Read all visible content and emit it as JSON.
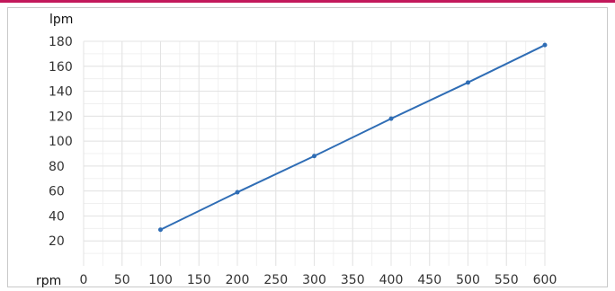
{
  "colors": {
    "accent_bar": "#c2185b",
    "line": "#2f6db5",
    "grid": "#e3e3e3",
    "frame": "#c9c9c9"
  },
  "chart_data": {
    "type": "line",
    "xlabel": "rpm",
    "ylabel": "lpm",
    "xlim": [
      0,
      600
    ],
    "ylim": [
      0,
      180
    ],
    "x_ticks": [
      0,
      50,
      100,
      150,
      200,
      250,
      300,
      350,
      400,
      450,
      500,
      550,
      600
    ],
    "y_ticks": [
      20,
      40,
      60,
      80,
      100,
      120,
      140,
      160,
      180
    ],
    "grid": true,
    "series": [
      {
        "x": [
          100,
          200,
          300,
          400,
          500,
          600
        ],
        "values": [
          29,
          59,
          88,
          118,
          147,
          177
        ]
      }
    ]
  }
}
